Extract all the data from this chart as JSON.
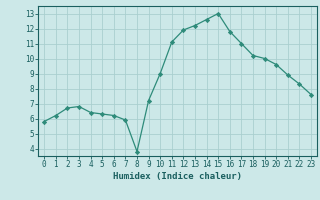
{
  "x": [
    0,
    1,
    2,
    3,
    4,
    5,
    6,
    7,
    8,
    9,
    10,
    11,
    12,
    13,
    14,
    15,
    16,
    17,
    18,
    19,
    20,
    21,
    22,
    23
  ],
  "y": [
    5.8,
    6.2,
    6.7,
    6.8,
    6.4,
    6.3,
    6.2,
    5.9,
    3.8,
    7.2,
    9.0,
    11.1,
    11.9,
    12.2,
    12.6,
    13.0,
    11.8,
    11.0,
    10.2,
    10.0,
    9.6,
    8.9,
    8.3,
    7.6
  ],
  "line_color": "#2e8b7a",
  "marker": "D",
  "marker_size": 2.2,
  "bg_color": "#cce8e8",
  "grid_color": "#aacfcf",
  "xlabel": "Humidex (Indice chaleur)",
  "ylim": [
    3.5,
    13.5
  ],
  "xlim": [
    -0.5,
    23.5
  ],
  "yticks": [
    4,
    5,
    6,
    7,
    8,
    9,
    10,
    11,
    12,
    13
  ],
  "xticks": [
    0,
    1,
    2,
    3,
    4,
    5,
    6,
    7,
    8,
    9,
    10,
    11,
    12,
    13,
    14,
    15,
    16,
    17,
    18,
    19,
    20,
    21,
    22,
    23
  ],
  "tick_color": "#1a5f5f",
  "label_fontsize": 6.5,
  "tick_fontsize": 5.5,
  "spine_color": "#1a5f5f",
  "linewidth": 0.9
}
